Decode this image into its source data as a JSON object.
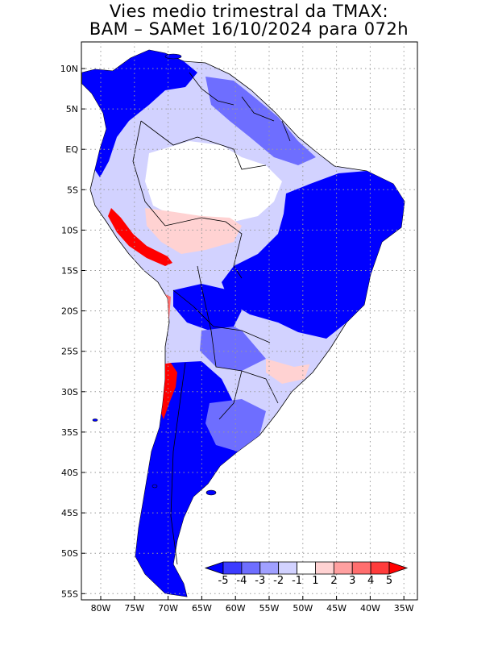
{
  "title": {
    "line1": "Vies medio trimestral da TMAX:",
    "line2": "BAM – SAMet 16/10/2024  para 072h"
  },
  "map": {
    "lat_labels": [
      "10N",
      "5N",
      "EQ",
      "5S",
      "10S",
      "15S",
      "20S",
      "25S",
      "30S",
      "35S",
      "40S",
      "45S",
      "50S",
      "55S"
    ],
    "lon_labels": [
      "80W",
      "75W",
      "70W",
      "65W",
      "60W",
      "55W",
      "50W",
      "45W",
      "40W",
      "35W"
    ],
    "grid": true,
    "grid_style": "dotted",
    "region": "South America"
  },
  "colorbar": {
    "levels": [
      "-5",
      "-4",
      "-3",
      "-2",
      "-1",
      "1",
      "2",
      "3",
      "4",
      "5"
    ],
    "colors": [
      "#0000ff",
      "#3c3cff",
      "#6e6eff",
      "#a0a0ff",
      "#d2d2ff",
      "#ffffff",
      "#ffd2d2",
      "#ffa0a0",
      "#ff6e6e",
      "#ff3c3c",
      "#ff0000"
    ],
    "placement": "bottom-right"
  },
  "colors": {
    "strong_negative": "#0000ff",
    "moderate_negative": "#6e6eff",
    "weak_negative": "#d2d2ff",
    "neutral": "#ffffff",
    "positive": "#ff3c3c"
  }
}
